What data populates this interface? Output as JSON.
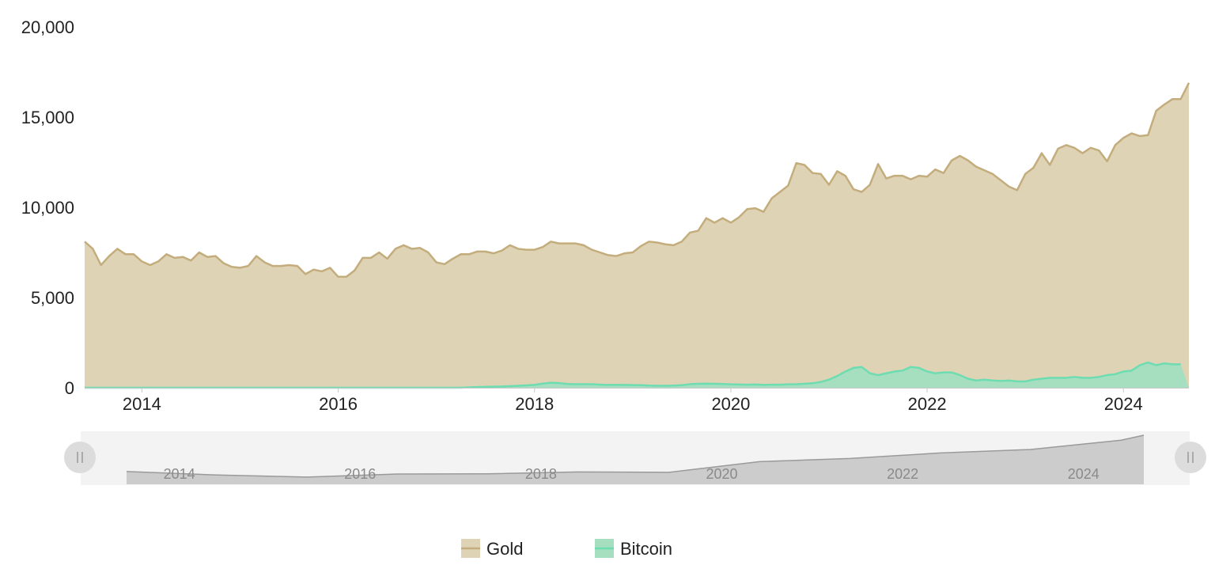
{
  "chart_data": {
    "type": "area",
    "x_start": "2013-06",
    "x_step": "month",
    "ylim": [
      0,
      20000
    ],
    "y_ticks": [
      0,
      5000,
      10000,
      15000,
      20000
    ],
    "y_tick_labels": [
      "0",
      "5,000",
      "10,000",
      "15,000",
      "20,000"
    ],
    "x_ticks": [
      "2014-01",
      "2016-01",
      "2018-01",
      "2020-01",
      "2022-01",
      "2024-01"
    ],
    "x_tick_labels": [
      "2014",
      "2016",
      "2018",
      "2020",
      "2022",
      "2024"
    ],
    "grid": false,
    "legend_position": "bottom-center",
    "series": [
      {
        "name": "Gold",
        "color": "#c3ad7c",
        "fill": "#dfd3b6",
        "values": [
          8100,
          7700,
          6800,
          7300,
          7700,
          7400,
          7400,
          7000,
          6800,
          7000,
          7400,
          7200,
          7250,
          7050,
          7500,
          7250,
          7300,
          6900,
          6700,
          6650,
          6750,
          7300,
          6950,
          6750,
          6750,
          6800,
          6750,
          6300,
          6550,
          6450,
          6650,
          6150,
          6150,
          6500,
          7200,
          7200,
          7500,
          7150,
          7700,
          7900,
          7700,
          7750,
          7500,
          6950,
          6850,
          7150,
          7400,
          7400,
          7550,
          7550,
          7450,
          7600,
          7900,
          7700,
          7650,
          7650,
          7800,
          8100,
          8000,
          8000,
          8000,
          7900,
          7650,
          7500,
          7350,
          7300,
          7450,
          7500,
          7850,
          8100,
          8050,
          7950,
          7900,
          8100,
          8600,
          8700,
          9400,
          9150,
          9400,
          9150,
          9450,
          9900,
          9950,
          9750,
          10500,
          10850,
          11200,
          12450,
          12350,
          11900,
          11850,
          11250,
          12000,
          11750,
          11000,
          10850,
          11250,
          12400,
          11600,
          11750,
          11750,
          11550,
          11750,
          11700,
          12100,
          11900,
          12600,
          12850,
          12600,
          12250,
          12050,
          11850,
          11500,
          11150,
          10950,
          11850,
          12200,
          13000,
          12350,
          13250,
          13450,
          13300,
          13000,
          13300,
          13150,
          12550,
          13450,
          13850,
          14100,
          13950,
          14000,
          15350,
          15700,
          16000,
          16000,
          16900
        ]
      },
      {
        "name": "Bitcoin",
        "color": "#6edcb1",
        "fill": "#a6dfc0",
        "values": [
          0,
          0,
          0,
          0,
          0,
          0,
          0,
          0,
          0,
          0,
          0,
          0,
          0,
          0,
          0,
          0,
          0,
          0,
          0,
          0,
          0,
          0,
          0,
          0,
          0,
          0,
          0,
          0,
          0,
          0,
          0,
          0,
          0,
          0,
          0,
          0,
          0,
          0,
          0,
          0,
          0,
          0,
          0,
          0,
          0,
          0,
          0,
          20,
          40,
          50,
          60,
          70,
          90,
          110,
          130,
          160,
          230,
          280,
          260,
          210,
          200,
          200,
          200,
          170,
          160,
          160,
          160,
          150,
          140,
          120,
          110,
          110,
          120,
          140,
          200,
          220,
          230,
          220,
          210,
          190,
          180,
          170,
          180,
          160,
          170,
          170,
          190,
          200,
          220,
          250,
          320,
          450,
          650,
          900,
          1100,
          1150,
          800,
          700,
          800,
          900,
          950,
          1150,
          1100,
          900,
          800,
          850,
          850,
          700,
          500,
          400,
          450,
          400,
          380,
          400,
          350,
          350,
          450,
          500,
          550,
          550,
          550,
          600,
          550,
          550,
          600,
          700,
          750,
          900,
          950,
          1250,
          1400,
          1250,
          1350,
          1300,
          1300
        ]
      }
    ]
  },
  "navigator": {
    "labels": [
      "2014",
      "2016",
      "2018",
      "2020",
      "2022",
      "2024"
    ],
    "left_handle_icon": "grip-lines-icon",
    "right_handle_icon": "grip-lines-icon"
  }
}
